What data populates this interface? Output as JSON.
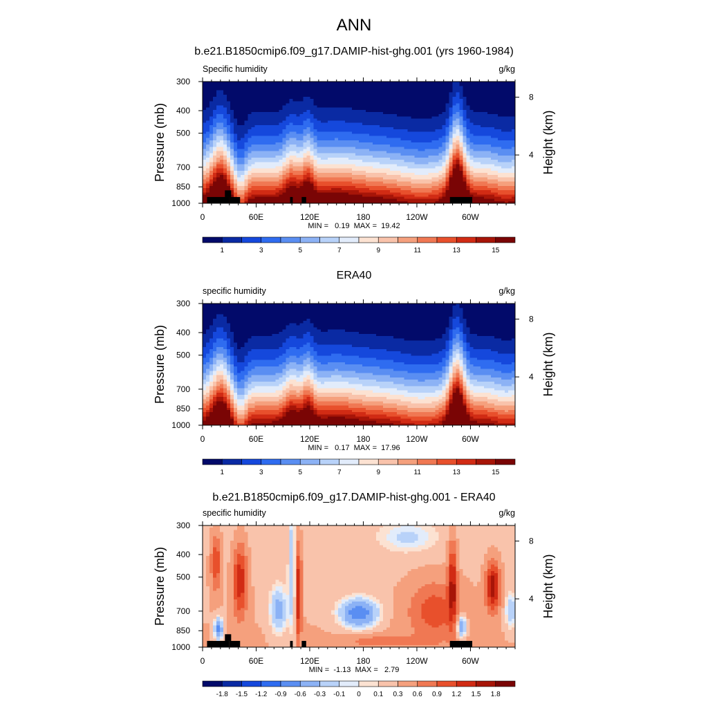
{
  "main_title": "ANN",
  "chart_data": [
    {
      "type": "heatmap",
      "title": "b.e21.B1850cmip6.f09_g17.DAMIP-hist-ghg.001 (yrs 1960-1984)",
      "left_label": "Specific humidity",
      "right_label": "g/kg",
      "ylabel": "Pressure (mb)",
      "ylabel_right": "Height (km)",
      "x_ticks": [
        "0",
        "60E",
        "120E",
        "180",
        "120W",
        "60W"
      ],
      "x_range": [
        0,
        350
      ],
      "y_ticks": [
        300,
        400,
        500,
        700,
        850,
        1000
      ],
      "height_ticks": [
        8,
        4
      ],
      "y_range": [
        300,
        1000
      ],
      "stats": "MIN =   0.19  MAX =  19.42",
      "field_kind": "abs",
      "colorbar_labels": [
        "1",
        "3",
        "5",
        "7",
        "9",
        "11",
        "13",
        "15"
      ],
      "colorbar_colors": [
        "#020a6a",
        "#0a2aa3",
        "#1548dc",
        "#2f6cf0",
        "#5a8ef2",
        "#8cb2f5",
        "#b8d2f9",
        "#e2ecfb",
        "#fce2d2",
        "#f9c3ab",
        "#f5a07d",
        "#f07853",
        "#e8502c",
        "#d12b14",
        "#a71508",
        "#7a0505"
      ],
      "masks": [
        [
          5,
          30,
          940,
          1000
        ],
        [
          25,
          32,
          880,
          940
        ],
        [
          30,
          42,
          940,
          1000
        ],
        [
          98,
          101,
          940,
          1000
        ],
        [
          111,
          116,
          940,
          1000
        ],
        [
          277,
          302,
          940,
          1000
        ]
      ]
    },
    {
      "type": "heatmap",
      "title": "ERA40",
      "left_label": "specific humidity",
      "right_label": "g/kg",
      "ylabel": "Pressure (mb)",
      "ylabel_right": "Height (km)",
      "x_ticks": [
        "0",
        "60E",
        "120E",
        "180",
        "120W",
        "60W"
      ],
      "x_range": [
        0,
        350
      ],
      "y_ticks": [
        300,
        400,
        500,
        700,
        850,
        1000
      ],
      "height_ticks": [
        8,
        4
      ],
      "y_range": [
        300,
        1000
      ],
      "stats": "MIN =   0.17  MAX =  17.96",
      "field_kind": "abs",
      "colorbar_labels": [
        "1",
        "3",
        "5",
        "7",
        "9",
        "11",
        "13",
        "15"
      ],
      "colorbar_colors": [
        "#020a6a",
        "#0a2aa3",
        "#1548dc",
        "#2f6cf0",
        "#5a8ef2",
        "#8cb2f5",
        "#b8d2f9",
        "#e2ecfb",
        "#fce2d2",
        "#f9c3ab",
        "#f5a07d",
        "#f07853",
        "#e8502c",
        "#d12b14",
        "#a71508",
        "#7a0505"
      ],
      "masks": []
    },
    {
      "type": "heatmap",
      "title": "b.e21.B1850cmip6.f09_g17.DAMIP-hist-ghg.001 - ERA40",
      "left_label": "specific humidity",
      "right_label": "g/kg",
      "ylabel": "Pressure (mb)",
      "ylabel_right": "Height (km)",
      "x_ticks": [
        "0",
        "60E",
        "120E",
        "180",
        "120W",
        "60W"
      ],
      "x_range": [
        0,
        350
      ],
      "y_ticks": [
        300,
        400,
        500,
        700,
        850,
        1000
      ],
      "height_ticks": [
        8,
        4
      ],
      "y_range": [
        300,
        1000
      ],
      "stats": "MIN =  -1.13  MAX =   2.79",
      "field_kind": "diff",
      "colorbar_labels": [
        "-1.8",
        "-1.5",
        "-1.2",
        "-0.9",
        "-0.6",
        "-0.3",
        "-0.1",
        "0",
        "0.1",
        "0.3",
        "0.6",
        "0.9",
        "1.2",
        "1.5",
        "1.8"
      ],
      "colorbar_colors": [
        "#020a6a",
        "#0a2aa3",
        "#1548dc",
        "#2f6cf0",
        "#5a8ef2",
        "#8cb2f5",
        "#b8d2f9",
        "#e2ecfb",
        "#fce2d2",
        "#f9c3ab",
        "#f5a07d",
        "#f07853",
        "#e8502c",
        "#d12b14",
        "#a71508",
        "#7a0505"
      ],
      "masks": [
        [
          5,
          30,
          940,
          1000
        ],
        [
          25,
          32,
          880,
          940
        ],
        [
          30,
          42,
          940,
          1000
        ],
        [
          98,
          101,
          940,
          1000
        ],
        [
          111,
          116,
          940,
          1000
        ],
        [
          277,
          302,
          940,
          1000
        ]
      ]
    }
  ]
}
